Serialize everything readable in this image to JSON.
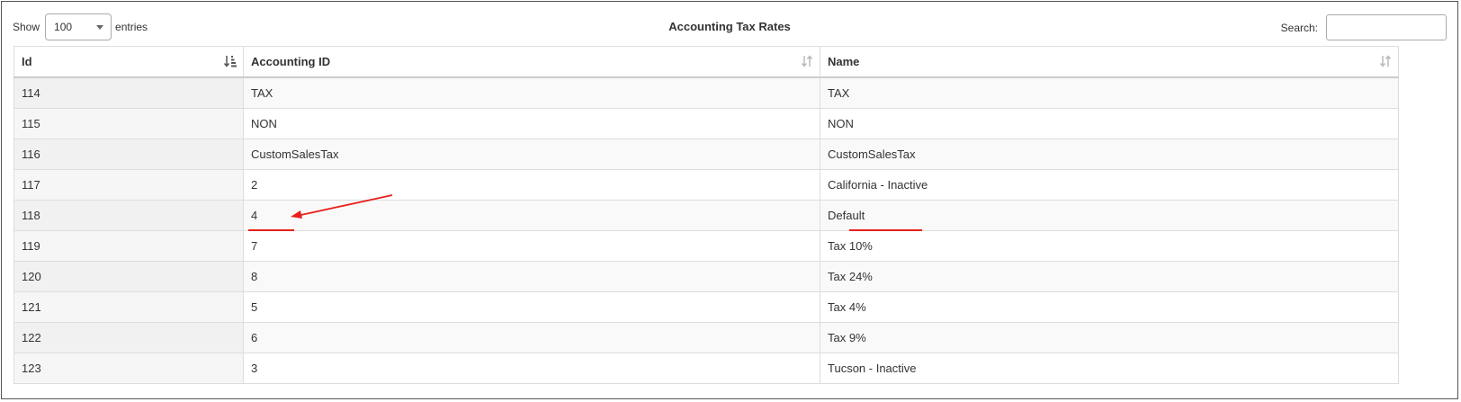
{
  "toolbar": {
    "show_label": "Show",
    "page_length": "100",
    "entries_label": "entries",
    "title": "Accounting Tax Rates",
    "search_label": "Search:",
    "search_value": ""
  },
  "table": {
    "columns": [
      "Id",
      "Accounting ID",
      "Name"
    ],
    "rows": [
      [
        "114",
        "TAX",
        "TAX"
      ],
      [
        "115",
        "NON",
        "NON"
      ],
      [
        "116",
        "CustomSalesTax",
        "CustomSalesTax"
      ],
      [
        "117",
        "2",
        "California - Inactive"
      ],
      [
        "118",
        "4",
        "Default"
      ],
      [
        "119",
        "7",
        "Tax 10%"
      ],
      [
        "120",
        "8",
        "Tax 24%"
      ],
      [
        "121",
        "5",
        "Tax 4%"
      ],
      [
        "122",
        "6",
        "Tax 9%"
      ],
      [
        "123",
        "3",
        "Tucson - Inactive"
      ]
    ]
  },
  "colors": {
    "annotation": "#e8201c",
    "border": "#dddddd",
    "stripe": "#f9f9f9"
  },
  "icons": {
    "sort_active": "sort-ascending-icon",
    "sort_inactive": "sort-both-icon"
  }
}
